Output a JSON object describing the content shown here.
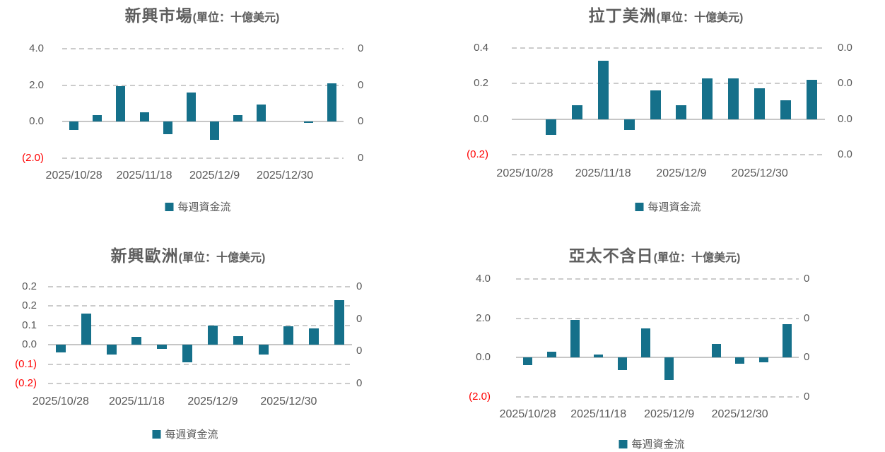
{
  "colors": {
    "bar": "#15708a",
    "axis_text": "#595959",
    "negative_tick_text": "#ff0000",
    "title_text": "#5e5e5e",
    "gridline": "#cbcbcb",
    "zero_line": "#c6c6c6",
    "background": "#ffffff"
  },
  "chart_data": [
    {
      "type": "bar",
      "title": "新興市場",
      "unit_label": "(單位：十億美元)",
      "legend": "每週資金流",
      "series_name": "每週資金流",
      "n_bars": 12,
      "values": [
        -0.45,
        0.35,
        1.95,
        0.5,
        -0.7,
        1.6,
        -1.0,
        0.35,
        0.95,
        0,
        -0.05,
        2.1
      ],
      "x_tick_labels": [
        "2025/10/28",
        "2025/11/18",
        "2025/12/9",
        "2025/12/30"
      ],
      "x_tick_slots": [
        0,
        3,
        6,
        9
      ],
      "left_axis": {
        "tick_labels": [
          "4.0",
          "2.0",
          "0.0",
          "(2.0)"
        ],
        "zero_tick_index": 2,
        "value_per_step": 2.0,
        "ylim": [
          -2.0,
          4.0
        ]
      },
      "right_axis": {
        "tick_labels": [
          "0",
          "0",
          "0",
          "0"
        ]
      },
      "grid": "dashed-horizontal",
      "legend_position": "bottom"
    },
    {
      "type": "bar",
      "title": "拉丁美洲",
      "unit_label": "(單位：十億美元)",
      "legend": "每週資金流",
      "series_name": "每週資金流",
      "n_bars": 12,
      "values": [
        0,
        -0.09,
        0.08,
        0.33,
        -0.06,
        0.16,
        0.08,
        0.23,
        0.23,
        0.175,
        0.105,
        0.22
      ],
      "x_tick_labels": [
        "2025/10/28",
        "2025/11/18",
        "2025/12/9",
        "2025/12/30"
      ],
      "x_tick_slots": [
        0,
        3,
        6,
        9
      ],
      "left_axis": {
        "tick_labels": [
          "0.4",
          "0.2",
          "0.0",
          "(0.2)"
        ],
        "zero_tick_index": 2,
        "value_per_step": 0.2,
        "ylim": [
          -0.2,
          0.4
        ]
      },
      "right_axis": {
        "tick_labels": [
          "0.0",
          "0.0",
          "0.0",
          "0.0"
        ]
      },
      "grid": "dashed-horizontal",
      "legend_position": "bottom"
    },
    {
      "type": "bar",
      "title": "新興歐洲",
      "unit_label": "(單位：十億美元)",
      "legend": "每週資金流",
      "series_name": "每週資金流",
      "n_bars": 12,
      "values": [
        -0.04,
        0.16,
        -0.05,
        0.04,
        -0.02,
        -0.09,
        0.1,
        0.045,
        -0.05,
        0.095,
        0.085,
        0.23
      ],
      "x_tick_labels": [
        "2025/10/28",
        "2025/11/18",
        "2025/12/9",
        "2025/12/30"
      ],
      "x_tick_slots": [
        0,
        3,
        6,
        9
      ],
      "left_axis": {
        "tick_labels": [
          "0.2",
          "0.2",
          "0.1",
          "0.0",
          "(0.1)",
          "(0.2)"
        ],
        "zero_tick_index": 3,
        "value_per_step": 0.1,
        "ylim": [
          -0.2,
          0.25
        ]
      },
      "right_axis": {
        "tick_labels": [
          "0",
          "0",
          "0",
          "0"
        ]
      },
      "grid": "dashed-horizontal",
      "legend_position": "bottom"
    },
    {
      "type": "bar",
      "title": "亞太不含日",
      "unit_label": "(單位：十億美元)",
      "legend": "每週資金流",
      "series_name": "每週資金流",
      "n_bars": 12,
      "values": [
        -0.4,
        0.3,
        1.9,
        0.15,
        -0.65,
        1.5,
        -1.15,
        0,
        0.7,
        -0.3,
        -0.25,
        1.7
      ],
      "x_tick_labels": [
        "2025/10/28",
        "2025/11/18",
        "2025/12/9",
        "2025/12/30"
      ],
      "x_tick_slots": [
        0,
        3,
        6,
        9
      ],
      "left_axis": {
        "tick_labels": [
          "4.0",
          "2.0",
          "0.0",
          "(2.0)"
        ],
        "zero_tick_index": 2,
        "value_per_step": 2.0,
        "ylim": [
          -2.0,
          4.0
        ]
      },
      "right_axis": {
        "tick_labels": [
          "0",
          "0",
          "0",
          "0"
        ]
      },
      "grid": "dashed-horizontal",
      "legend_position": "bottom"
    }
  ]
}
